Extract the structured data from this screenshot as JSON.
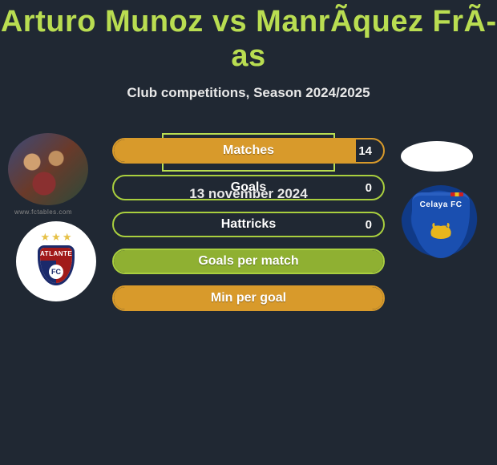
{
  "title": "Arturo Munoz vs ManrÃ­quez FrÃ­as",
  "subtitle": "Club competitions, Season 2024/2025",
  "colors": {
    "accent": "#b9dd51",
    "background": "#202833",
    "fill_orange": "#d89a2b",
    "fill_green": "#8fb032",
    "border_orange": "#d89a2b",
    "border_green": "#a9cf3e",
    "text": "#ffffff"
  },
  "left_badge": {
    "name": "ATLANTE",
    "stars": 3
  },
  "right_badge": {
    "name": "Celaya FC"
  },
  "stats": [
    {
      "label": "Matches",
      "value": "14",
      "fill_pct": 90,
      "fill_color": "#d89a2b",
      "border_color": "#d89a2b"
    },
    {
      "label": "Goals",
      "value": "0",
      "fill_pct": 0,
      "fill_color": "#8fb032",
      "border_color": "#a9cf3e"
    },
    {
      "label": "Hattricks",
      "value": "0",
      "fill_pct": 0,
      "fill_color": "#8fb032",
      "border_color": "#a9cf3e"
    },
    {
      "label": "Goals per match",
      "value": "",
      "fill_pct": 100,
      "fill_color": "#8fb032",
      "border_color": "#a9cf3e"
    },
    {
      "label": "Min per goal",
      "value": "",
      "fill_pct": 100,
      "fill_color": "#d89a2b",
      "border_color": "#d89a2b"
    }
  ],
  "brand": "FcTables.com",
  "date": "13 november 2024",
  "web_caption": "www.fctables.com"
}
